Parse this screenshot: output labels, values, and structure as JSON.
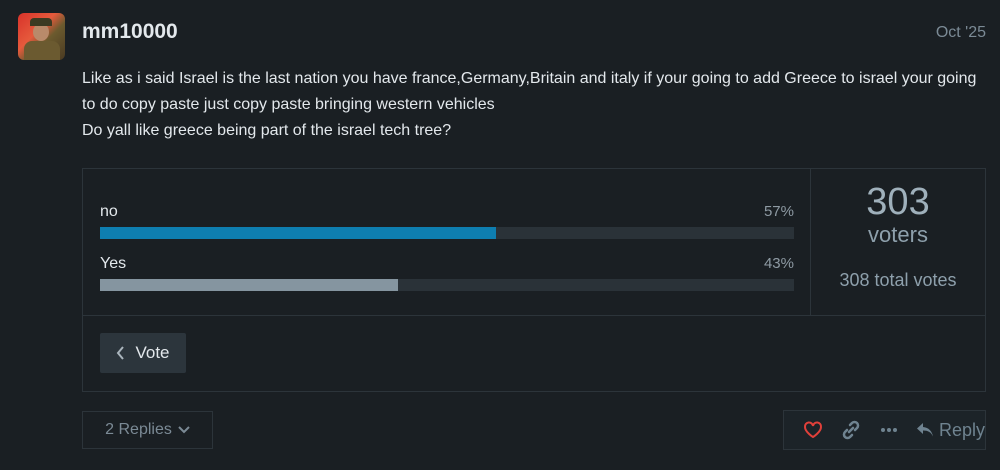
{
  "post": {
    "username": "mm10000",
    "date": "Oct '25",
    "lines": [
      "Like as i said Israel is the last nation you have france,Germany,Britain and italy if your going to add Greece to israel your going to do copy paste just copy paste bringing western vehicles",
      "Do yall like greece being part of the israel tech tree?"
    ]
  },
  "poll": {
    "options": [
      {
        "label": "no",
        "percent": "57%",
        "value": 57,
        "color": "#0e7eb0"
      },
      {
        "label": "Yes",
        "percent": "43%",
        "value": 43,
        "color": "#8595a0"
      }
    ],
    "voters": "303",
    "voters_label": "voters",
    "total_votes": "308",
    "total_votes_label": "total votes",
    "vote_label": "Vote"
  },
  "footer": {
    "replies_label": "2 Replies",
    "reply_label": "Reply",
    "icons": [
      "heart-icon",
      "link-icon",
      "more-icon",
      "reply-icon"
    ]
  }
}
